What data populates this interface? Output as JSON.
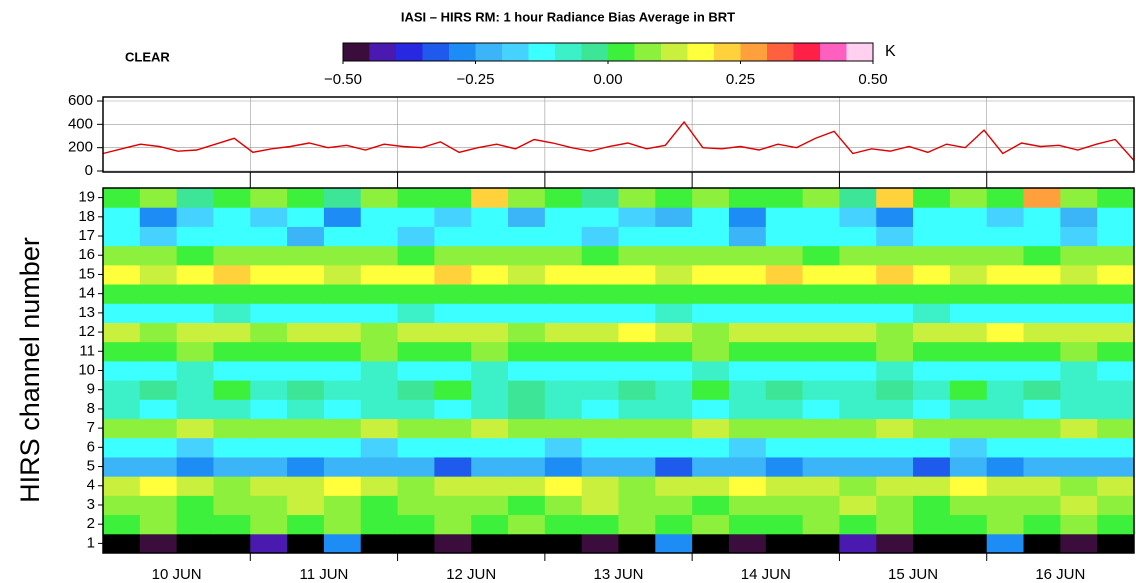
{
  "chart_data": [
    {
      "type": "line",
      "title": "IASI – HIRS RM: 1 hour Radiance Bias Average in BRT",
      "annotation": "CLEAR",
      "color": "#e00000",
      "grid": true,
      "ylim": [
        0,
        600
      ],
      "yticks": [
        0,
        200,
        400,
        600
      ],
      "values": [
        150,
        190,
        230,
        210,
        170,
        180,
        230,
        280,
        160,
        190,
        210,
        240,
        200,
        220,
        180,
        230,
        210,
        200,
        250,
        160,
        200,
        230,
        190,
        270,
        240,
        200,
        170,
        210,
        240,
        190,
        220,
        420,
        200,
        190,
        210,
        180,
        230,
        200,
        280,
        340,
        150,
        190,
        170,
        210,
        160,
        230,
        200,
        350,
        150,
        240,
        210,
        220,
        180,
        230,
        270,
        90
      ]
    },
    {
      "type": "heatmap",
      "ylabel": "HIRS channel number",
      "categories": [
        "10 JUN",
        "11 JUN",
        "12 JUN",
        "13 JUN",
        "14 JUN",
        "15 JUN",
        "16 JUN"
      ],
      "y": [
        1,
        2,
        3,
        4,
        5,
        6,
        7,
        8,
        9,
        10,
        11,
        12,
        13,
        14,
        15,
        16,
        17,
        18,
        19
      ],
      "colorbar": {
        "clim": [
          -0.5,
          0.5
        ],
        "unit": "K",
        "ticks": [
          {
            "value": -0.5,
            "label": "−0.50"
          },
          {
            "value": -0.25,
            "label": "−0.25"
          },
          {
            "value": 0,
            "label": "0.00"
          },
          {
            "value": 0.25,
            "label": "0.25"
          },
          {
            "value": 0.5,
            "label": "0.50"
          }
        ],
        "under_color": "#000000",
        "colors": [
          "#3a0d3d",
          "#4a1ab0",
          "#2828e0",
          "#1e5aeb",
          "#1e8cf5",
          "#3cb4f8",
          "#46d2ff",
          "#3cffff",
          "#3cf0c8",
          "#3ce696",
          "#3cf03c",
          "#8cf03c",
          "#c8f03c",
          "#ffff3c",
          "#ffd23c",
          "#ffa03c",
          "#ff6040",
          "#ff2048",
          "#ff60c0",
          "#ffd0f0"
        ]
      },
      "z": [
        [
          -0.6,
          -0.47,
          -0.6,
          -0.6,
          -0.43,
          -0.6,
          -0.3,
          -0.6,
          -0.6,
          -0.47,
          -0.6,
          -0.6,
          -0.6,
          -0.47,
          -0.6,
          -0.27,
          -0.6,
          -0.47,
          -0.6,
          -0.6,
          -0.42,
          -0.47,
          -0.6,
          -0.6,
          -0.27,
          -0.6,
          -0.47,
          -0.6
        ],
        [
          0.02,
          0.07,
          0.02,
          0.02,
          0.07,
          0.02,
          0.07,
          0.02,
          0.02,
          0.07,
          0.02,
          0.07,
          0.02,
          0.02,
          0.07,
          0.02,
          0.07,
          0.02,
          0.02,
          0.07,
          0.02,
          0.07,
          0.02,
          0.02,
          0.07,
          0.02,
          0.07,
          0.02
        ],
        [
          0.07,
          0.07,
          0.02,
          0.07,
          0.07,
          0.12,
          0.07,
          0.02,
          0.07,
          0.07,
          0.07,
          0.02,
          0.07,
          0.12,
          0.07,
          0.07,
          0.02,
          0.07,
          0.07,
          0.07,
          0.12,
          0.07,
          0.02,
          0.07,
          0.07,
          0.07,
          0.12,
          0.07
        ],
        [
          0.12,
          0.17,
          0.12,
          0.07,
          0.12,
          0.12,
          0.17,
          0.12,
          0.07,
          0.12,
          0.12,
          0.12,
          0.17,
          0.12,
          0.07,
          0.12,
          0.12,
          0.17,
          0.12,
          0.12,
          0.07,
          0.12,
          0.12,
          0.17,
          0.12,
          0.12,
          0.07,
          0.12
        ],
        [
          -0.22,
          -0.22,
          -0.27,
          -0.22,
          -0.22,
          -0.27,
          -0.22,
          -0.22,
          -0.22,
          -0.32,
          -0.22,
          -0.22,
          -0.27,
          -0.22,
          -0.22,
          -0.32,
          -0.22,
          -0.22,
          -0.27,
          -0.22,
          -0.22,
          -0.22,
          -0.32,
          -0.22,
          -0.27,
          -0.22,
          -0.22,
          -0.22
        ],
        [
          -0.12,
          -0.12,
          -0.17,
          -0.12,
          -0.12,
          -0.12,
          -0.12,
          -0.17,
          -0.12,
          -0.12,
          -0.12,
          -0.12,
          -0.17,
          -0.12,
          -0.12,
          -0.12,
          -0.12,
          -0.17,
          -0.12,
          -0.12,
          -0.12,
          -0.12,
          -0.12,
          -0.17,
          -0.12,
          -0.12,
          -0.12,
          -0.12
        ],
        [
          0.07,
          0.07,
          0.12,
          0.07,
          0.07,
          0.07,
          0.07,
          0.12,
          0.07,
          0.07,
          0.12,
          0.07,
          0.07,
          0.07,
          0.07,
          0.07,
          0.12,
          0.07,
          0.07,
          0.07,
          0.07,
          0.12,
          0.07,
          0.07,
          0.07,
          0.07,
          0.12,
          0.07
        ],
        [
          -0.07,
          -0.12,
          -0.07,
          -0.07,
          -0.12,
          -0.07,
          -0.12,
          -0.07,
          -0.07,
          -0.12,
          -0.07,
          -0.02,
          -0.07,
          -0.12,
          -0.07,
          -0.07,
          -0.12,
          -0.07,
          -0.07,
          -0.12,
          -0.07,
          -0.07,
          -0.12,
          -0.07,
          -0.07,
          -0.12,
          -0.07,
          -0.07
        ],
        [
          -0.07,
          -0.02,
          -0.07,
          0.02,
          -0.07,
          -0.02,
          -0.07,
          -0.07,
          -0.02,
          0.02,
          -0.07,
          -0.02,
          -0.07,
          -0.07,
          -0.02,
          -0.07,
          0.02,
          -0.07,
          -0.02,
          -0.07,
          -0.07,
          -0.02,
          -0.07,
          0.02,
          -0.07,
          -0.02,
          -0.07,
          -0.07
        ],
        [
          -0.12,
          -0.12,
          -0.07,
          -0.12,
          -0.12,
          -0.12,
          -0.12,
          -0.07,
          -0.12,
          -0.12,
          -0.07,
          -0.12,
          -0.12,
          -0.12,
          -0.12,
          -0.12,
          -0.07,
          -0.12,
          -0.12,
          -0.12,
          -0.12,
          -0.07,
          -0.12,
          -0.12,
          -0.12,
          -0.12,
          -0.07,
          -0.12
        ],
        [
          0.02,
          0.02,
          0.07,
          0.02,
          0.02,
          0.02,
          0.02,
          0.07,
          0.02,
          0.02,
          0.07,
          0.02,
          0.02,
          0.02,
          0.02,
          0.02,
          0.07,
          0.02,
          0.02,
          0.02,
          0.02,
          0.07,
          0.02,
          0.02,
          0.02,
          0.02,
          0.07,
          0.02
        ],
        [
          0.12,
          0.07,
          0.12,
          0.12,
          0.07,
          0.12,
          0.12,
          0.07,
          0.12,
          0.12,
          0.12,
          0.07,
          0.12,
          0.12,
          0.17,
          0.12,
          0.07,
          0.12,
          0.12,
          0.12,
          0.12,
          0.07,
          0.12,
          0.12,
          0.17,
          0.12,
          0.12,
          0.12
        ],
        [
          -0.12,
          -0.12,
          -0.12,
          -0.07,
          -0.12,
          -0.12,
          -0.12,
          -0.12,
          -0.07,
          -0.12,
          -0.12,
          -0.12,
          -0.12,
          -0.12,
          -0.12,
          -0.07,
          -0.12,
          -0.12,
          -0.12,
          -0.12,
          -0.12,
          -0.12,
          -0.07,
          -0.12,
          -0.12,
          -0.12,
          -0.12,
          -0.12
        ],
        [
          0.02,
          0.02,
          0.02,
          0.02,
          0.02,
          0.02,
          0.02,
          0.02,
          0.02,
          0.02,
          0.02,
          0.02,
          0.02,
          0.02,
          0.02,
          0.02,
          0.02,
          0.02,
          0.02,
          0.02,
          0.02,
          0.02,
          0.02,
          0.02,
          0.02,
          0.02,
          0.02,
          0.02
        ],
        [
          0.17,
          0.12,
          0.17,
          0.22,
          0.17,
          0.17,
          0.12,
          0.17,
          0.17,
          0.22,
          0.17,
          0.12,
          0.17,
          0.17,
          0.17,
          0.12,
          0.17,
          0.17,
          0.22,
          0.17,
          0.17,
          0.22,
          0.17,
          0.12,
          0.17,
          0.17,
          0.12,
          0.17
        ],
        [
          0.07,
          0.07,
          0.02,
          0.07,
          0.07,
          0.07,
          0.07,
          0.07,
          0.02,
          0.07,
          0.07,
          0.07,
          0.07,
          0.02,
          0.07,
          0.07,
          0.07,
          0.07,
          0.07,
          0.02,
          0.07,
          0.07,
          0.07,
          0.07,
          0.07,
          0.02,
          0.07,
          0.07
        ],
        [
          -0.12,
          -0.17,
          -0.12,
          -0.12,
          -0.12,
          -0.22,
          -0.12,
          -0.12,
          -0.17,
          -0.12,
          -0.12,
          -0.12,
          -0.12,
          -0.17,
          -0.12,
          -0.12,
          -0.12,
          -0.22,
          -0.12,
          -0.12,
          -0.12,
          -0.17,
          -0.12,
          -0.12,
          -0.12,
          -0.12,
          -0.17,
          -0.12
        ],
        [
          -0.12,
          -0.27,
          -0.17,
          -0.12,
          -0.17,
          -0.12,
          -0.27,
          -0.12,
          -0.12,
          -0.17,
          -0.12,
          -0.22,
          -0.12,
          -0.12,
          -0.17,
          -0.22,
          -0.12,
          -0.27,
          -0.12,
          -0.12,
          -0.17,
          -0.27,
          -0.12,
          -0.12,
          -0.17,
          -0.12,
          -0.22,
          -0.12
        ],
        [
          0.02,
          0.07,
          -0.02,
          0.02,
          0.07,
          0.02,
          -0.02,
          0.07,
          0.02,
          0.02,
          0.22,
          0.07,
          0.02,
          -0.02,
          0.07,
          0.02,
          0.07,
          0.02,
          0.02,
          0.07,
          -0.02,
          0.22,
          0.02,
          0.07,
          0.02,
          0.27,
          0.07,
          0.02
        ]
      ]
    }
  ]
}
